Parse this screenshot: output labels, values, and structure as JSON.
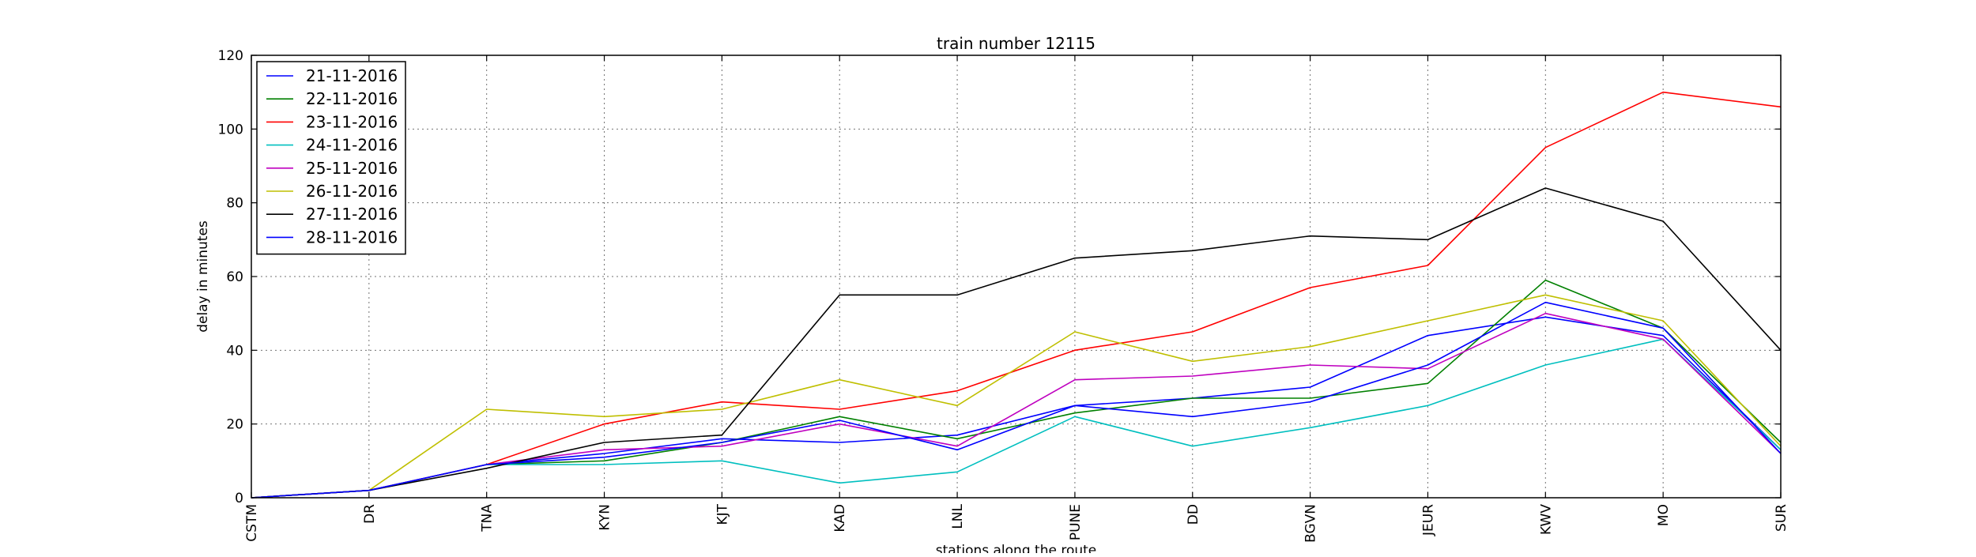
{
  "chart_data": {
    "type": "line",
    "title": "train number 12115",
    "xlabel": "stations along the route",
    "ylabel": "delay in minutes",
    "categories": [
      "CSTM",
      "DR",
      "TNA",
      "KYN",
      "KJT",
      "KAD",
      "LNL",
      "PUNE",
      "DD",
      "BGVN",
      "JEUR",
      "KWV",
      "MO",
      "SUR"
    ],
    "ylim": [
      0,
      120
    ],
    "yticks": [
      0,
      20,
      40,
      60,
      80,
      100,
      120
    ],
    "grid": true,
    "legend_position": "top-left",
    "series": [
      {
        "name": "21-11-2016",
        "color": "#0000ff",
        "values": [
          0,
          2,
          9,
          12,
          16,
          15,
          17,
          25,
          27,
          30,
          44,
          49,
          44,
          13
        ]
      },
      {
        "name": "22-11-2016",
        "color": "#008000",
        "values": [
          0,
          2,
          9,
          10,
          15,
          22,
          16,
          23,
          27,
          27,
          31,
          59,
          46,
          15
        ]
      },
      {
        "name": "23-11-2016",
        "color": "#ff0000",
        "values": [
          0,
          2,
          9,
          20,
          26,
          24,
          29,
          40,
          45,
          57,
          63,
          95,
          110,
          106
        ]
      },
      {
        "name": "24-11-2016",
        "color": "#00bfbf",
        "values": [
          0,
          2,
          9,
          9,
          10,
          4,
          7,
          22,
          14,
          19,
          25,
          36,
          43,
          13
        ]
      },
      {
        "name": "25-11-2016",
        "color": "#bf00bf",
        "values": [
          0,
          2,
          9,
          13,
          14,
          20,
          14,
          32,
          33,
          36,
          35,
          50,
          43,
          12
        ]
      },
      {
        "name": "26-11-2016",
        "color": "#bfbf00",
        "values": [
          0,
          2,
          24,
          22,
          24,
          32,
          25,
          45,
          37,
          41,
          48,
          55,
          48,
          14
        ]
      },
      {
        "name": "27-11-2016",
        "color": "#000000",
        "values": [
          0,
          2,
          8,
          15,
          17,
          55,
          55,
          65,
          67,
          71,
          70,
          84,
          75,
          40
        ]
      },
      {
        "name": "28-11-2016",
        "color": "#0000ff",
        "values": [
          0,
          2,
          9,
          11,
          15,
          21,
          13,
          25,
          22,
          26,
          36,
          53,
          46,
          12
        ]
      }
    ]
  }
}
